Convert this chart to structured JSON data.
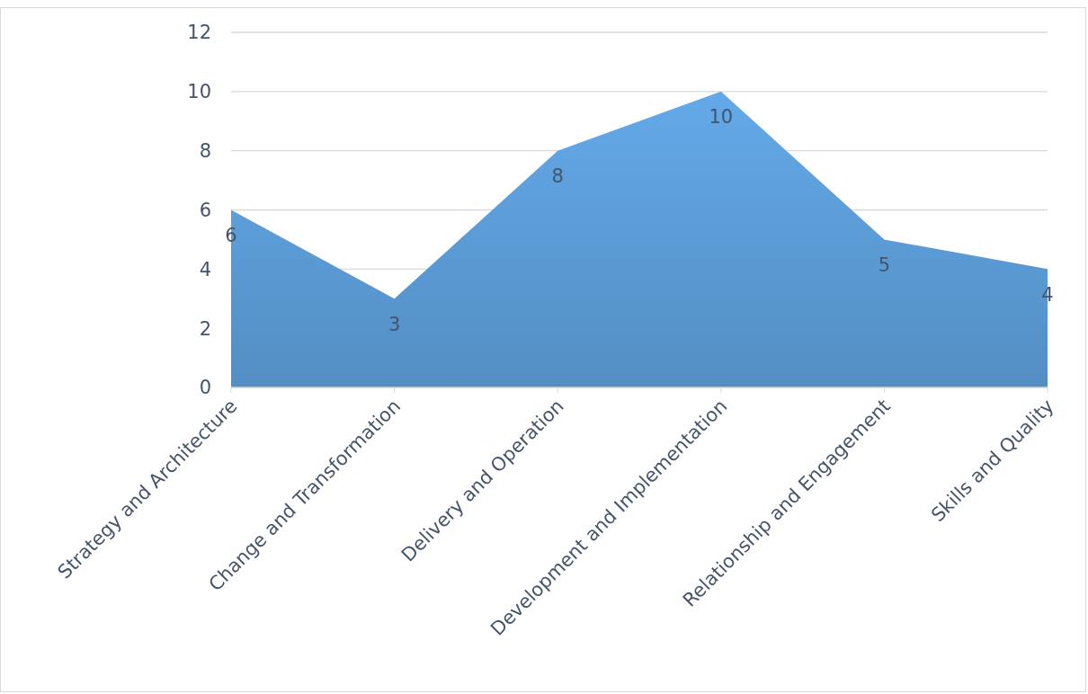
{
  "chart_data": {
    "type": "area",
    "categories": [
      "Strategy and Architecture",
      "Change and Transformation",
      "Delivery and Operation",
      "Development and Implementation",
      "Relationship and Engagement",
      "Skills and Quality"
    ],
    "values": [
      6,
      3,
      8,
      10,
      5,
      4
    ],
    "color": "#5b9bd5",
    "ylim": [
      0,
      12
    ],
    "yticks": [
      0,
      2,
      4,
      6,
      8,
      10,
      12
    ],
    "grid": "y",
    "data_labels": true
  }
}
